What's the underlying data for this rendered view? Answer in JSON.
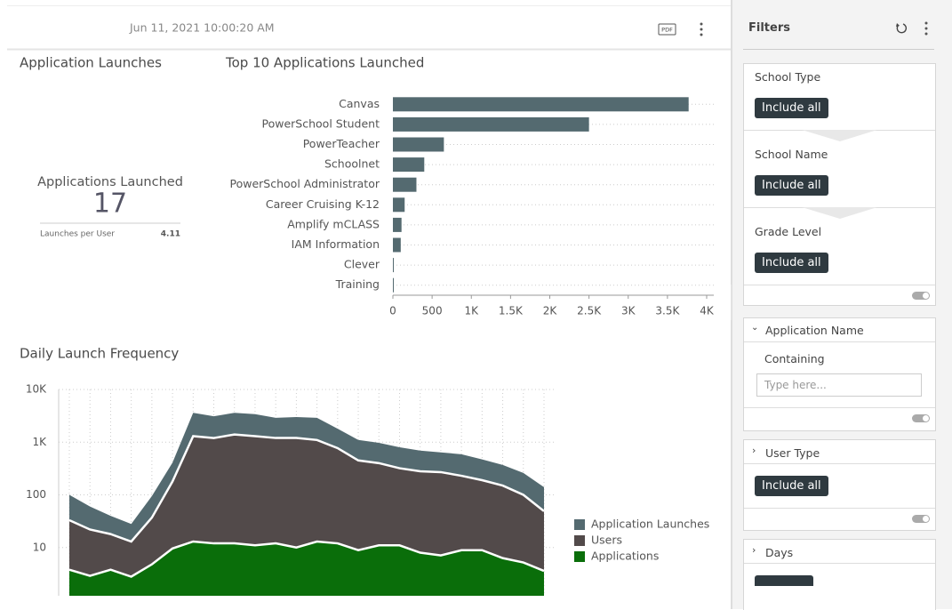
{
  "header": {
    "timestamp": "Jun 11, 2021 10:00:20 AM",
    "pdf": "PDF"
  },
  "kpi": {
    "section_title": "Application Launches",
    "label": "Applications Launched",
    "value": 17,
    "sub_label": "Launches per User",
    "sub_value": 4.11
  },
  "chart_data": [
    {
      "type": "bar",
      "orientation": "horizontal",
      "title": "Top 10 Applications Launched",
      "categories": [
        "Canvas",
        "PowerSchool Student",
        "PowerTeacher",
        "Schoolnet",
        "PowerSchool Administrator",
        "Career Cruising K-12",
        "Amplify mCLASS",
        "IAM Information",
        "Clever",
        "Training"
      ],
      "values": [
        3770,
        2500,
        650,
        400,
        300,
        150,
        110,
        100,
        10,
        10
      ],
      "color": "#546a70",
      "xlim": [
        0,
        4000
      ],
      "xticks": [
        0,
        500,
        {
          "value": 1000,
          "label": "1K"
        },
        {
          "value": 1500,
          "label": "1.5K"
        },
        {
          "value": 2000,
          "label": "2K"
        },
        {
          "value": 2500,
          "label": "2.5K"
        },
        {
          "value": 3000,
          "label": "3K"
        },
        {
          "value": 3500,
          "label": "3.5K"
        },
        {
          "value": 4000,
          "label": "4K"
        }
      ],
      "grid": true
    },
    {
      "type": "area",
      "title": "Daily Launch Frequency",
      "log_scale": true,
      "legend": "right",
      "categories": [
        null,
        null,
        null,
        null,
        null,
        null,
        null,
        null,
        null,
        null,
        null,
        null,
        null,
        null,
        null,
        null,
        null,
        null,
        null,
        null,
        null,
        null,
        null,
        null
      ],
      "ylim": [
        1,
        10000
      ],
      "yticks": [
        10,
        100,
        {
          "value": 1000,
          "label": "1K"
        },
        {
          "value": 10000,
          "label": "10K"
        }
      ],
      "grid": true,
      "series": [
        {
          "name": "Application Launches",
          "color": "#546a70",
          "values": [
            100,
            60,
            40,
            28,
            95,
            410,
            3600,
            3100,
            3600,
            3400,
            2900,
            3000,
            2900,
            1800,
            1100,
            970,
            800,
            690,
            640,
            590,
            470,
            370,
            260,
            140
          ]
        },
        {
          "name": "Users",
          "color": "#524a4a",
          "values": [
            33,
            22,
            18,
            13,
            37,
            180,
            1300,
            1200,
            1400,
            1300,
            1200,
            1200,
            1100,
            770,
            450,
            400,
            320,
            280,
            270,
            230,
            190,
            150,
            100,
            49
          ]
        },
        {
          "name": "Applications",
          "color": "#0a6e0a",
          "values": [
            3.8,
            2.9,
            3.8,
            2.8,
            4.8,
            9.6,
            13,
            12,
            12,
            11,
            12,
            10,
            13,
            12,
            8.9,
            11,
            11,
            8,
            7.1,
            8.9,
            8.9,
            6.3,
            5.2,
            3.6
          ]
        }
      ]
    }
  ],
  "filters": {
    "title": "Filters",
    "groups": [
      {
        "label": "School Type",
        "button": "Include all"
      },
      {
        "label": "School Name",
        "button": "Include all"
      },
      {
        "label": "Grade Level",
        "button": "Include all"
      }
    ],
    "application_name": {
      "label": "Application Name",
      "containing": "Containing",
      "placeholder": "Type here..."
    },
    "user_type": {
      "label": "User Type",
      "button": "Include all"
    },
    "days": {
      "label": "Days"
    }
  }
}
